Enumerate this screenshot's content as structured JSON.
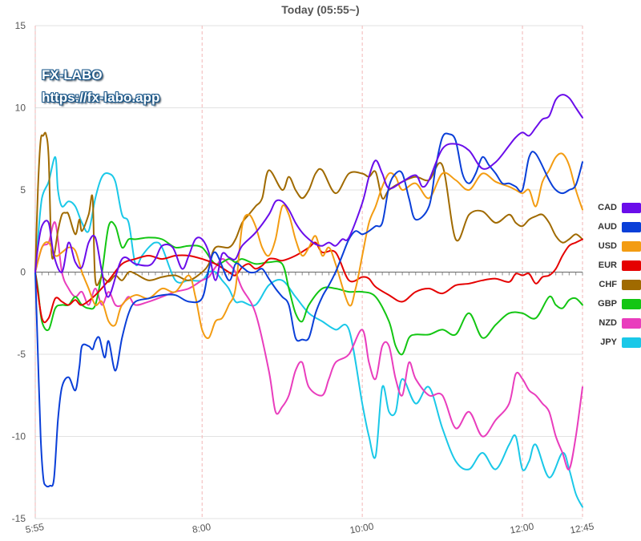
{
  "page_title": "Today  (05:55~)",
  "watermark": {
    "line1": "FX-LABO",
    "line2": "https://fx-labo.app"
  },
  "chart_data": {
    "type": "line",
    "title": "Today  (05:55~)",
    "xlabel": "",
    "ylabel": "",
    "ylim": [
      -15,
      15
    ],
    "yticks": [
      15,
      10,
      5,
      0,
      -5,
      -10,
      -15
    ],
    "x_ticks": [
      "5:55",
      "8:00",
      "10:00",
      "12:00",
      "12:45"
    ],
    "x_tick_minutes": [
      355,
      480,
      600,
      720,
      765
    ],
    "xlim_minutes": [
      355,
      765
    ],
    "grid": true,
    "legend_position": "right",
    "series": [
      {
        "name": "CAD",
        "color": "#6a0dea",
        "x": [
          355,
          357,
          360,
          365,
          369,
          375,
          380,
          385,
          390,
          395,
          400,
          405,
          410,
          420,
          430,
          440,
          445,
          450,
          458,
          465,
          470,
          475,
          480,
          485,
          490,
          495,
          500,
          505,
          510,
          520,
          530,
          535,
          540,
          545,
          550,
          555,
          560,
          565,
          570,
          575,
          580,
          585,
          590,
          600,
          605,
          610,
          615,
          620,
          630,
          640,
          645,
          650,
          660,
          670,
          680,
          690,
          700,
          710,
          715,
          720,
          725,
          730,
          735,
          740,
          745,
          750,
          755,
          760,
          765
        ],
        "y": [
          0,
          1.5,
          2.8,
          3.0,
          1.0,
          0,
          1.8,
          0.6,
          0.3,
          1.8,
          2.1,
          0,
          -1.5,
          0.8,
          0.5,
          0.4,
          0.8,
          1.6,
          1.5,
          0.2,
          1.0,
          2.0,
          2.0,
          1.2,
          -0.5,
          1.1,
          0.9,
          0.8,
          1.6,
          2.4,
          3.5,
          4.3,
          4.3,
          3.8,
          3.0,
          2.4,
          2.0,
          1.7,
          1.6,
          1.8,
          1.6,
          2.0,
          2.1,
          4.2,
          5.8,
          6.8,
          6.0,
          5.1,
          5.5,
          5.9,
          5.2,
          5.6,
          7.5,
          7.8,
          7.4,
          6.3,
          6.7,
          7.7,
          8.2,
          8.5,
          8.3,
          8.8,
          9.3,
          9.5,
          10.5,
          10.8,
          10.6,
          10.0,
          9.4
        ]
      },
      {
        "name": "AUD",
        "color": "#0a3fd8",
        "x": [
          355,
          357,
          359,
          361,
          363,
          366,
          369,
          372,
          375,
          380,
          385,
          388,
          390,
          395,
          398,
          400,
          403,
          407,
          410,
          415,
          420,
          425,
          430,
          440,
          450,
          460,
          470,
          480,
          485,
          490,
          500,
          505,
          510,
          515,
          520,
          525,
          530,
          535,
          540,
          545,
          550,
          555,
          560,
          565,
          570,
          575,
          580,
          585,
          590,
          595,
          600,
          605,
          610,
          615,
          620,
          625,
          630,
          635,
          640,
          650,
          655,
          660,
          665,
          670,
          675,
          680,
          685,
          690,
          695,
          700,
          705,
          710,
          715,
          720,
          725,
          730,
          740,
          745,
          750,
          755,
          760,
          765
        ],
        "y": [
          0,
          -5,
          -10,
          -12.5,
          -13,
          -13,
          -12.6,
          -9,
          -7,
          -6.4,
          -7.2,
          -5.8,
          -4.5,
          -4.5,
          -4.7,
          -4.2,
          -4.0,
          -5.2,
          -4.2,
          -6.0,
          -4.0,
          -2.5,
          -1.8,
          -1.6,
          -1.4,
          -1.4,
          -1.8,
          -1.6,
          0.2,
          1.2,
          -0.5,
          0.5,
          0.3,
          0,
          0,
          0.2,
          -0.4,
          -1.0,
          -1.5,
          -2.0,
          -4.0,
          -4.1,
          -4.0,
          -2.5,
          -1.5,
          -0.8,
          0,
          1.0,
          2.0,
          2.5,
          2.3,
          2.5,
          2.8,
          3.0,
          5.2,
          6.0,
          6.0,
          4.5,
          3.2,
          4.0,
          6.4,
          8.2,
          8.4,
          8.0,
          6.0,
          5.4,
          6.0,
          7.0,
          6.5,
          6.0,
          5.4,
          5.4,
          5.2,
          5.0,
          7.0,
          7.2,
          5.6,
          5.0,
          4.8,
          5.0,
          5.3,
          6.7
        ]
      },
      {
        "name": "USD",
        "color": "#f39c12",
        "x": [
          355,
          360,
          365,
          370,
          375,
          380,
          385,
          390,
          395,
          400,
          405,
          410,
          415,
          420,
          430,
          440,
          450,
          460,
          470,
          475,
          480,
          485,
          490,
          495,
          500,
          505,
          510,
          515,
          520,
          525,
          530,
          535,
          540,
          545,
          550,
          555,
          560,
          565,
          570,
          575,
          580,
          590,
          595,
          600,
          605,
          610,
          615,
          620,
          625,
          630,
          640,
          650,
          660,
          670,
          680,
          690,
          700,
          710,
          715,
          720,
          725,
          730,
          735,
          740,
          745,
          750,
          755,
          760,
          765
        ],
        "y": [
          0,
          1.5,
          1.8,
          1.0,
          1.2,
          1.5,
          1.3,
          0,
          -1.0,
          -2.0,
          -1.8,
          -3.0,
          -3.2,
          -2.0,
          -1.4,
          -1.6,
          -1.0,
          -1.2,
          -0.2,
          -1.5,
          -3.5,
          -4.0,
          -3.0,
          -2.8,
          -2.0,
          -1.0,
          2.8,
          3.5,
          2.8,
          1.5,
          1.0,
          2.0,
          4.0,
          3.5,
          2.0,
          1.0,
          1.5,
          2.2,
          1.0,
          1.5,
          0.5,
          -2.0,
          -1.0,
          1.0,
          3.0,
          4.0,
          5.2,
          6.0,
          5.8,
          5.0,
          5.4,
          4.5,
          6.0,
          5.6,
          5.0,
          6.0,
          5.5,
          5.2,
          5.0,
          4.8,
          5.0,
          4.0,
          5.5,
          6.2,
          7.0,
          7.2,
          6.5,
          5.0,
          3.8
        ]
      },
      {
        "name": "EUR",
        "color": "#e50000",
        "x": [
          355,
          360,
          365,
          370,
          375,
          380,
          385,
          390,
          400,
          410,
          420,
          430,
          440,
          450,
          460,
          470,
          480,
          490,
          500,
          505,
          510,
          515,
          520,
          525,
          530,
          535,
          540,
          550,
          560,
          565,
          570,
          580,
          590,
          600,
          605,
          610,
          620,
          630,
          640,
          650,
          660,
          670,
          680,
          690,
          700,
          710,
          715,
          720,
          725,
          730,
          735,
          740,
          745,
          750,
          755,
          760,
          765
        ],
        "y": [
          0,
          -2.8,
          -2.8,
          -1.6,
          -1.8,
          -2.0,
          -1.7,
          -2.0,
          -1.4,
          -0.5,
          0.5,
          0.8,
          1.0,
          0.8,
          1.0,
          1.0,
          0.8,
          0.5,
          0,
          -0.2,
          0.3,
          0.5,
          0.2,
          0.4,
          0.8,
          0.8,
          0.7,
          1.0,
          1.5,
          1.8,
          1.2,
          1.2,
          -0.5,
          -0.3,
          -0.4,
          -0.9,
          -1.4,
          -1.8,
          -1.2,
          -1.0,
          -1.3,
          -0.8,
          -0.7,
          -0.5,
          -0.4,
          -0.6,
          -0.1,
          -0.2,
          -0.1,
          -0.7,
          -0.3,
          -0.2,
          0.2,
          1.0,
          1.6,
          1.8,
          2.0
        ]
      },
      {
        "name": "CHF",
        "color": "#a06a00",
        "x": [
          355,
          357,
          359,
          361,
          363,
          365,
          367,
          369,
          372,
          375,
          378,
          380,
          385,
          388,
          390,
          395,
          398,
          400,
          405,
          410,
          415,
          420,
          425,
          430,
          440,
          450,
          460,
          470,
          480,
          485,
          490,
          500,
          505,
          510,
          515,
          520,
          525,
          530,
          540,
          545,
          550,
          555,
          560,
          565,
          570,
          580,
          590,
          600,
          605,
          610,
          615,
          620,
          630,
          640,
          650,
          660,
          670,
          680,
          690,
          700,
          710,
          715,
          720,
          725,
          730,
          735,
          740,
          745,
          750,
          755,
          760,
          765
        ],
        "y": [
          0,
          5,
          8,
          8.3,
          8.4,
          7.0,
          1.5,
          1.0,
          2.5,
          3.5,
          3.6,
          3.5,
          2.3,
          3.2,
          2.5,
          3.5,
          4.5,
          -0.5,
          -0.3,
          -0.6,
          -0.2,
          -0.5,
          0,
          -0.1,
          -0.5,
          -0.3,
          -0.2,
          -0.5,
          0,
          0.5,
          1.5,
          1.5,
          2.0,
          3.0,
          3.5,
          4.0,
          4.5,
          6.2,
          5.0,
          5.8,
          5.0,
          4.5,
          5.0,
          6.0,
          6.2,
          4.8,
          6.0,
          6.0,
          5.8,
          6.1,
          4.5,
          5.0,
          5.5,
          5.8,
          5.6,
          6.5,
          2.0,
          3.5,
          3.7,
          3.0,
          3.5,
          3.0,
          2.8,
          3.2,
          3.4,
          3.5,
          3.0,
          2.2,
          1.8,
          2.0,
          2.3,
          2.0
        ]
      },
      {
        "name": "GBP",
        "color": "#13c613",
        "x": [
          355,
          357,
          360,
          365,
          370,
          375,
          380,
          385,
          390,
          395,
          400,
          405,
          410,
          415,
          420,
          425,
          430,
          440,
          450,
          460,
          470,
          480,
          490,
          500,
          505,
          510,
          520,
          530,
          540,
          545,
          550,
          555,
          560,
          570,
          580,
          590,
          600,
          610,
          620,
          625,
          630,
          635,
          640,
          650,
          660,
          670,
          680,
          690,
          700,
          710,
          720,
          730,
          740,
          745,
          750,
          755,
          760,
          765
        ],
        "y": [
          0,
          -1.0,
          -3.0,
          -3.5,
          -2.2,
          -2.0,
          -2.0,
          -1.5,
          -2.0,
          -2.2,
          -2.0,
          0,
          2.8,
          2.8,
          1.5,
          2.0,
          2.0,
          2.1,
          2.0,
          1.5,
          1.6,
          1.5,
          0.5,
          0.8,
          0.6,
          0.8,
          0.5,
          0.6,
          0.5,
          -1.0,
          -2.5,
          -3.0,
          -2.0,
          -1.0,
          -1.0,
          -1.2,
          -1.2,
          -1.5,
          -3.0,
          -4.5,
          -5.0,
          -4.0,
          -3.8,
          -3.8,
          -3.5,
          -3.8,
          -2.5,
          -4.0,
          -3.2,
          -2.5,
          -2.5,
          -2.8,
          -1.5,
          -2.0,
          -2.2,
          -1.7,
          -1.6,
          -2.0
        ]
      },
      {
        "name": "NZD",
        "color": "#e93dbd",
        "x": [
          355,
          360,
          365,
          370,
          375,
          380,
          385,
          390,
          395,
          400,
          405,
          410,
          415,
          420,
          425,
          430,
          440,
          450,
          460,
          470,
          480,
          485,
          490,
          495,
          500,
          505,
          510,
          520,
          530,
          535,
          540,
          545,
          550,
          555,
          560,
          570,
          575,
          580,
          590,
          600,
          605,
          610,
          615,
          620,
          625,
          630,
          635,
          640,
          650,
          660,
          670,
          680,
          690,
          700,
          710,
          715,
          720,
          725,
          730,
          735,
          740,
          745,
          750,
          755,
          760,
          765
        ],
        "y": [
          0,
          1.5,
          1.8,
          3.0,
          0,
          -1.0,
          -1.5,
          -1.2,
          -2.0,
          -1.0,
          -2.0,
          -1.2,
          -2.0,
          -2.0,
          -1.5,
          -2.0,
          -1.8,
          -1.5,
          -1.2,
          -1.0,
          -0.5,
          -0.3,
          0.3,
          0.8,
          0.5,
          0,
          -1.0,
          -2.5,
          -6.0,
          -8.5,
          -8.2,
          -7.5,
          -6.0,
          -5.5,
          -7.0,
          -7.5,
          -6.5,
          -5.5,
          -5.0,
          -3.5,
          -5.5,
          -6.5,
          -4.5,
          -4.5,
          -6.5,
          -7.5,
          -5.5,
          -6.5,
          -7.5,
          -7.5,
          -9.5,
          -8.5,
          -10.0,
          -9.0,
          -8.0,
          -6.2,
          -6.5,
          -7.2,
          -7.5,
          -8.0,
          -8.5,
          -10.0,
          -11.0,
          -12.0,
          -10.0,
          -7.0
        ]
      },
      {
        "name": "JPY",
        "color": "#1ac8e8",
        "x": [
          355,
          357,
          360,
          365,
          370,
          372,
          375,
          380,
          385,
          390,
          395,
          400,
          405,
          410,
          415,
          420,
          425,
          430,
          435,
          440,
          445,
          450,
          460,
          470,
          480,
          485,
          490,
          495,
          500,
          505,
          510,
          520,
          530,
          540,
          550,
          560,
          570,
          580,
          590,
          600,
          605,
          610,
          615,
          620,
          625,
          630,
          640,
          650,
          660,
          670,
          680,
          690,
          700,
          710,
          715,
          720,
          725,
          730,
          740,
          750,
          755,
          760,
          765
        ],
        "y": [
          0,
          2.0,
          4.5,
          5.5,
          7.0,
          5.0,
          4.0,
          4.3,
          4.0,
          3.0,
          2.5,
          4.5,
          5.8,
          6.0,
          5.5,
          3.5,
          3.0,
          0.5,
          1.0,
          1.5,
          1.8,
          1.5,
          -0.5,
          -0.5,
          -0.5,
          0,
          0,
          -0.5,
          -1.0,
          -1.8,
          -1.8,
          -2.0,
          -0.8,
          -0.5,
          -1.5,
          -2.5,
          -3.0,
          -3.5,
          -3.5,
          -8.0,
          -10.0,
          -11.2,
          -7.0,
          -8.5,
          -8.5,
          -6.5,
          -8.0,
          -7.0,
          -9.5,
          -11.5,
          -12.0,
          -11.0,
          -12.0,
          -10.5,
          -10.0,
          -12.0,
          -11.5,
          -10.5,
          -12.5,
          -11.0,
          -12.0,
          -13.5,
          -14.3
        ]
      }
    ]
  }
}
